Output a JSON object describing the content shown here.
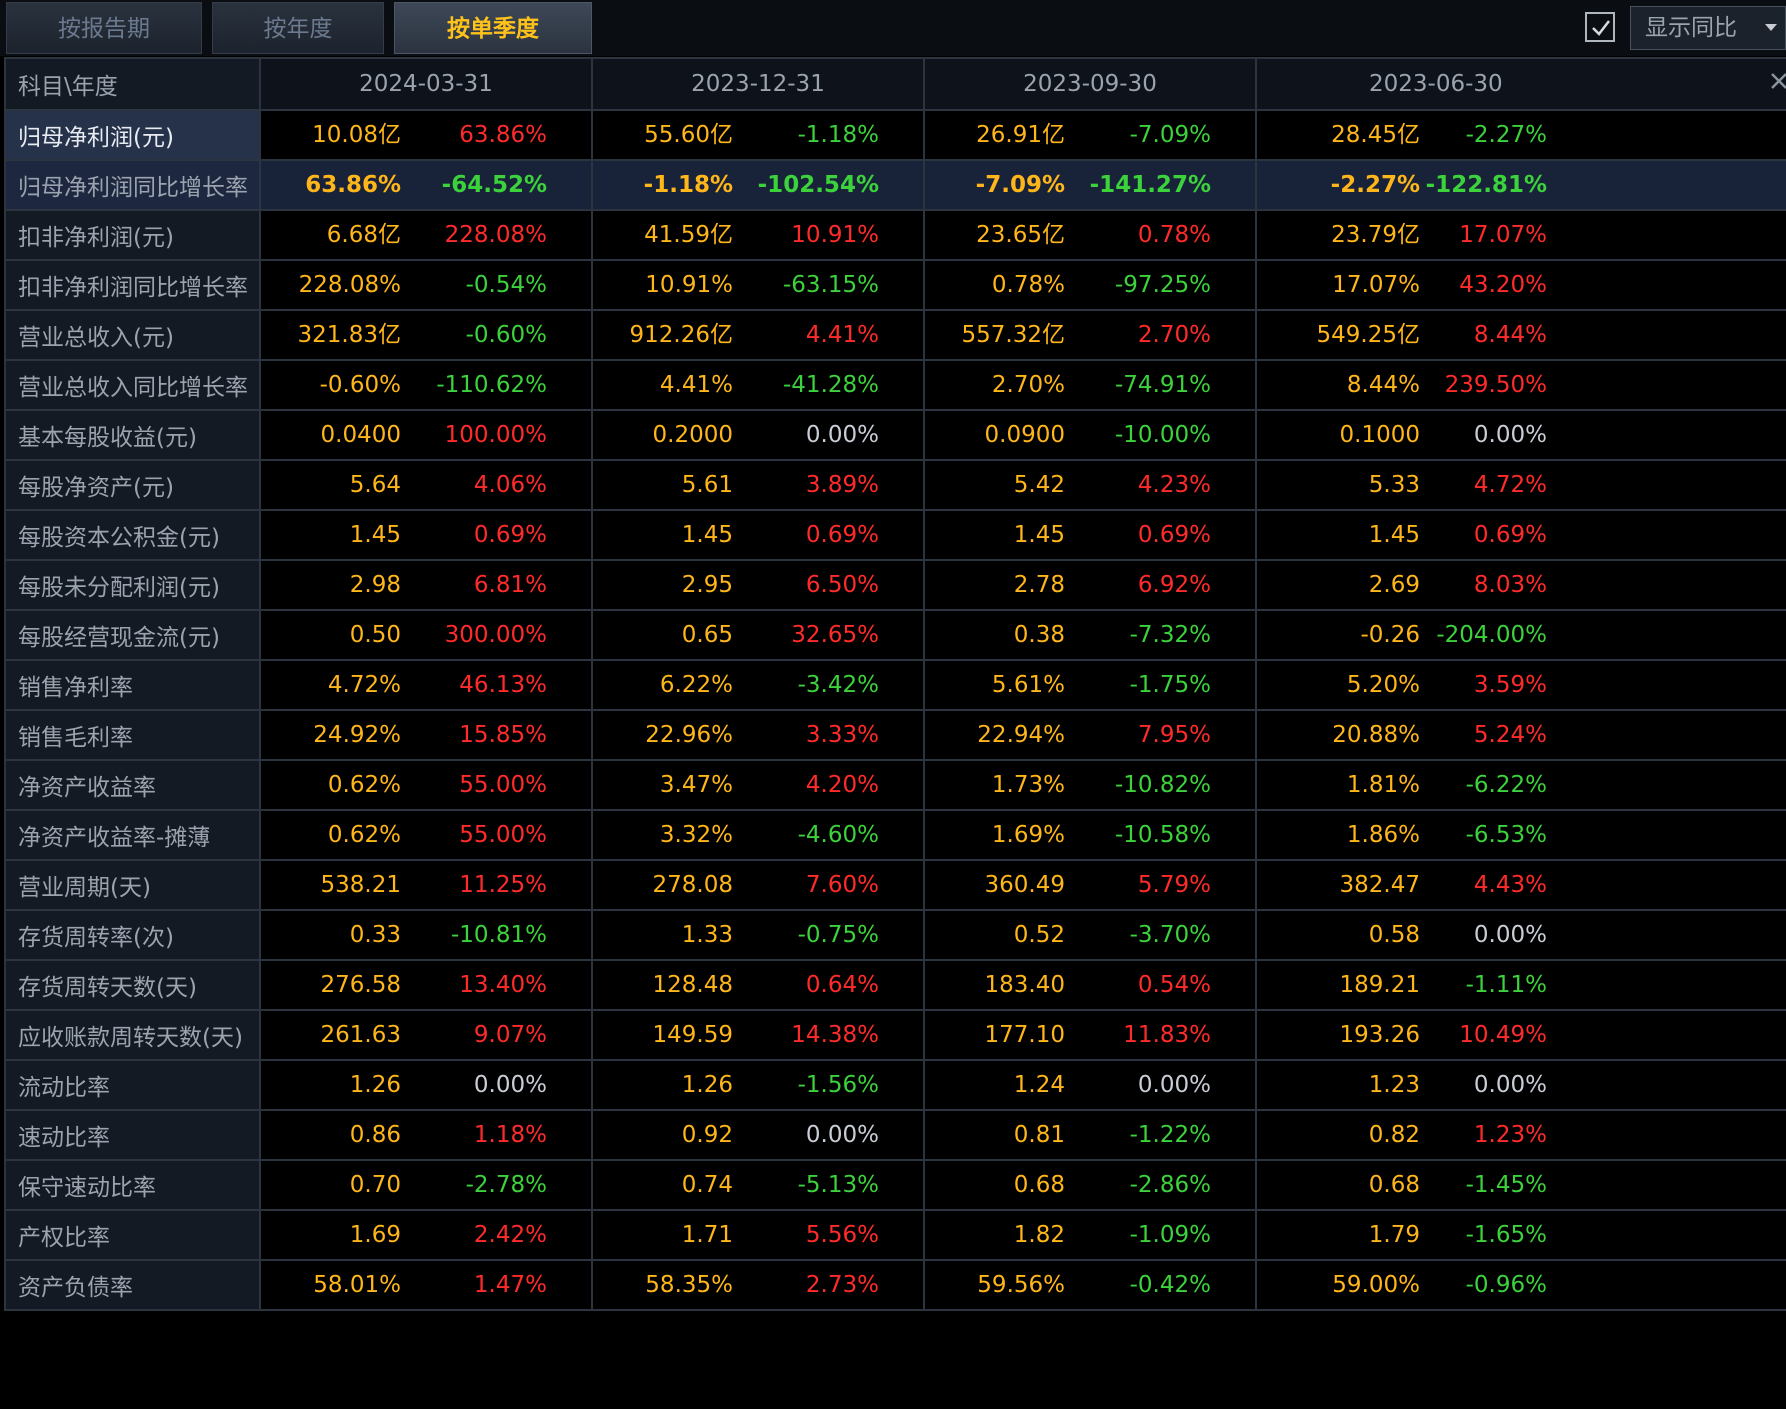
{
  "tabs": [
    {
      "label": "按报告期",
      "active": false
    },
    {
      "label": "按年度",
      "active": false
    },
    {
      "label": "按单季度",
      "active": true
    }
  ],
  "controls": {
    "checkbox_checked": true,
    "dropdown_label": "显示同比"
  },
  "table": {
    "header_label": "科目\\年度",
    "columns": [
      "2024-03-31",
      "2023-12-31",
      "2023-09-30",
      "2023-06-30"
    ],
    "rows": [
      {
        "label": "归母净利润(元)",
        "selected": true,
        "highlight": false,
        "cells": [
          {
            "value": "10.08亿",
            "change": "63.86%",
            "color": "red"
          },
          {
            "value": "55.60亿",
            "change": "-1.18%",
            "color": "green"
          },
          {
            "value": "26.91亿",
            "change": "-7.09%",
            "color": "green"
          },
          {
            "value": "28.45亿",
            "change": "-2.27%",
            "color": "green"
          }
        ]
      },
      {
        "label": "归母净利润同比增长率",
        "selected": false,
        "highlight": true,
        "cells": [
          {
            "value": "63.86%",
            "change": "-64.52%",
            "color": "green"
          },
          {
            "value": "-1.18%",
            "change": "-102.54%",
            "color": "green"
          },
          {
            "value": "-7.09%",
            "change": "-141.27%",
            "color": "green"
          },
          {
            "value": "-2.27%",
            "change": "-122.81%",
            "color": "green"
          }
        ]
      },
      {
        "label": "扣非净利润(元)",
        "selected": false,
        "highlight": false,
        "cells": [
          {
            "value": "6.68亿",
            "change": "228.08%",
            "color": "red"
          },
          {
            "value": "41.59亿",
            "change": "10.91%",
            "color": "red"
          },
          {
            "value": "23.65亿",
            "change": "0.78%",
            "color": "red"
          },
          {
            "value": "23.79亿",
            "change": "17.07%",
            "color": "red"
          }
        ]
      },
      {
        "label": "扣非净利润同比增长率",
        "selected": false,
        "highlight": false,
        "cells": [
          {
            "value": "228.08%",
            "change": "-0.54%",
            "color": "green"
          },
          {
            "value": "10.91%",
            "change": "-63.15%",
            "color": "green"
          },
          {
            "value": "0.78%",
            "change": "-97.25%",
            "color": "green"
          },
          {
            "value": "17.07%",
            "change": "43.20%",
            "color": "red"
          }
        ]
      },
      {
        "label": "营业总收入(元)",
        "selected": false,
        "highlight": false,
        "cells": [
          {
            "value": "321.83亿",
            "change": "-0.60%",
            "color": "green"
          },
          {
            "value": "912.26亿",
            "change": "4.41%",
            "color": "red"
          },
          {
            "value": "557.32亿",
            "change": "2.70%",
            "color": "red"
          },
          {
            "value": "549.25亿",
            "change": "8.44%",
            "color": "red"
          }
        ]
      },
      {
        "label": "营业总收入同比增长率",
        "selected": false,
        "highlight": false,
        "cells": [
          {
            "value": "-0.60%",
            "change": "-110.62%",
            "color": "green"
          },
          {
            "value": "4.41%",
            "change": "-41.28%",
            "color": "green"
          },
          {
            "value": "2.70%",
            "change": "-74.91%",
            "color": "green"
          },
          {
            "value": "8.44%",
            "change": "239.50%",
            "color": "red"
          }
        ]
      },
      {
        "label": "基本每股收益(元)",
        "selected": false,
        "highlight": false,
        "cells": [
          {
            "value": "0.0400",
            "change": "100.00%",
            "color": "red"
          },
          {
            "value": "0.2000",
            "change": "0.00%",
            "color": "white"
          },
          {
            "value": "0.0900",
            "change": "-10.00%",
            "color": "green"
          },
          {
            "value": "0.1000",
            "change": "0.00%",
            "color": "white"
          }
        ]
      },
      {
        "label": "每股净资产(元)",
        "selected": false,
        "highlight": false,
        "cells": [
          {
            "value": "5.64",
            "change": "4.06%",
            "color": "red"
          },
          {
            "value": "5.61",
            "change": "3.89%",
            "color": "red"
          },
          {
            "value": "5.42",
            "change": "4.23%",
            "color": "red"
          },
          {
            "value": "5.33",
            "change": "4.72%",
            "color": "red"
          }
        ]
      },
      {
        "label": "每股资本公积金(元)",
        "selected": false,
        "highlight": false,
        "cells": [
          {
            "value": "1.45",
            "change": "0.69%",
            "color": "red"
          },
          {
            "value": "1.45",
            "change": "0.69%",
            "color": "red"
          },
          {
            "value": "1.45",
            "change": "0.69%",
            "color": "red"
          },
          {
            "value": "1.45",
            "change": "0.69%",
            "color": "red"
          }
        ]
      },
      {
        "label": "每股未分配利润(元)",
        "selected": false,
        "highlight": false,
        "cells": [
          {
            "value": "2.98",
            "change": "6.81%",
            "color": "red"
          },
          {
            "value": "2.95",
            "change": "6.50%",
            "color": "red"
          },
          {
            "value": "2.78",
            "change": "6.92%",
            "color": "red"
          },
          {
            "value": "2.69",
            "change": "8.03%",
            "color": "red"
          }
        ]
      },
      {
        "label": "每股经营现金流(元)",
        "selected": false,
        "highlight": false,
        "cells": [
          {
            "value": "0.50",
            "change": "300.00%",
            "color": "red"
          },
          {
            "value": "0.65",
            "change": "32.65%",
            "color": "red"
          },
          {
            "value": "0.38",
            "change": "-7.32%",
            "color": "green"
          },
          {
            "value": "-0.26",
            "change": "-204.00%",
            "color": "green"
          }
        ]
      },
      {
        "label": "销售净利率",
        "selected": false,
        "highlight": false,
        "cells": [
          {
            "value": "4.72%",
            "change": "46.13%",
            "color": "red"
          },
          {
            "value": "6.22%",
            "change": "-3.42%",
            "color": "green"
          },
          {
            "value": "5.61%",
            "change": "-1.75%",
            "color": "green"
          },
          {
            "value": "5.20%",
            "change": "3.59%",
            "color": "red"
          }
        ]
      },
      {
        "label": "销售毛利率",
        "selected": false,
        "highlight": false,
        "cells": [
          {
            "value": "24.92%",
            "change": "15.85%",
            "color": "red"
          },
          {
            "value": "22.96%",
            "change": "3.33%",
            "color": "red"
          },
          {
            "value": "22.94%",
            "change": "7.95%",
            "color": "red"
          },
          {
            "value": "20.88%",
            "change": "5.24%",
            "color": "red"
          }
        ]
      },
      {
        "label": "净资产收益率",
        "selected": false,
        "highlight": false,
        "cells": [
          {
            "value": "0.62%",
            "change": "55.00%",
            "color": "red"
          },
          {
            "value": "3.47%",
            "change": "4.20%",
            "color": "red"
          },
          {
            "value": "1.73%",
            "change": "-10.82%",
            "color": "green"
          },
          {
            "value": "1.81%",
            "change": "-6.22%",
            "color": "green"
          }
        ]
      },
      {
        "label": "净资产收益率-摊薄",
        "selected": false,
        "highlight": false,
        "cells": [
          {
            "value": "0.62%",
            "change": "55.00%",
            "color": "red"
          },
          {
            "value": "3.32%",
            "change": "-4.60%",
            "color": "green"
          },
          {
            "value": "1.69%",
            "change": "-10.58%",
            "color": "green"
          },
          {
            "value": "1.86%",
            "change": "-6.53%",
            "color": "green"
          }
        ]
      },
      {
        "label": "营业周期(天)",
        "selected": false,
        "highlight": false,
        "cells": [
          {
            "value": "538.21",
            "change": "11.25%",
            "color": "red"
          },
          {
            "value": "278.08",
            "change": "7.60%",
            "color": "red"
          },
          {
            "value": "360.49",
            "change": "5.79%",
            "color": "red"
          },
          {
            "value": "382.47",
            "change": "4.43%",
            "color": "red"
          }
        ]
      },
      {
        "label": "存货周转率(次)",
        "selected": false,
        "highlight": false,
        "cells": [
          {
            "value": "0.33",
            "change": "-10.81%",
            "color": "green"
          },
          {
            "value": "1.33",
            "change": "-0.75%",
            "color": "green"
          },
          {
            "value": "0.52",
            "change": "-3.70%",
            "color": "green"
          },
          {
            "value": "0.58",
            "change": "0.00%",
            "color": "white"
          }
        ]
      },
      {
        "label": "存货周转天数(天)",
        "selected": false,
        "highlight": false,
        "cells": [
          {
            "value": "276.58",
            "change": "13.40%",
            "color": "red"
          },
          {
            "value": "128.48",
            "change": "0.64%",
            "color": "red"
          },
          {
            "value": "183.40",
            "change": "0.54%",
            "color": "red"
          },
          {
            "value": "189.21",
            "change": "-1.11%",
            "color": "green"
          }
        ]
      },
      {
        "label": "应收账款周转天数(天)",
        "selected": false,
        "highlight": false,
        "cells": [
          {
            "value": "261.63",
            "change": "9.07%",
            "color": "red"
          },
          {
            "value": "149.59",
            "change": "14.38%",
            "color": "red"
          },
          {
            "value": "177.10",
            "change": "11.83%",
            "color": "red"
          },
          {
            "value": "193.26",
            "change": "10.49%",
            "color": "red"
          }
        ]
      },
      {
        "label": "流动比率",
        "selected": false,
        "highlight": false,
        "cells": [
          {
            "value": "1.26",
            "change": "0.00%",
            "color": "white"
          },
          {
            "value": "1.26",
            "change": "-1.56%",
            "color": "green"
          },
          {
            "value": "1.24",
            "change": "0.00%",
            "color": "white"
          },
          {
            "value": "1.23",
            "change": "0.00%",
            "color": "white"
          }
        ]
      },
      {
        "label": "速动比率",
        "selected": false,
        "highlight": false,
        "cells": [
          {
            "value": "0.86",
            "change": "1.18%",
            "color": "red"
          },
          {
            "value": "0.92",
            "change": "0.00%",
            "color": "white"
          },
          {
            "value": "0.81",
            "change": "-1.22%",
            "color": "green"
          },
          {
            "value": "0.82",
            "change": "1.23%",
            "color": "red"
          }
        ]
      },
      {
        "label": "保守速动比率",
        "selected": false,
        "highlight": false,
        "cells": [
          {
            "value": "0.70",
            "change": "-2.78%",
            "color": "green"
          },
          {
            "value": "0.74",
            "change": "-5.13%",
            "color": "green"
          },
          {
            "value": "0.68",
            "change": "-2.86%",
            "color": "green"
          },
          {
            "value": "0.68",
            "change": "-1.45%",
            "color": "green"
          }
        ]
      },
      {
        "label": "产权比率",
        "selected": false,
        "highlight": false,
        "cells": [
          {
            "value": "1.69",
            "change": "2.42%",
            "color": "red"
          },
          {
            "value": "1.71",
            "change": "5.56%",
            "color": "red"
          },
          {
            "value": "1.82",
            "change": "-1.09%",
            "color": "green"
          },
          {
            "value": "1.79",
            "change": "-1.65%",
            "color": "green"
          }
        ]
      },
      {
        "label": "资产负债率",
        "selected": false,
        "highlight": false,
        "cells": [
          {
            "value": "58.01%",
            "change": "1.47%",
            "color": "red"
          },
          {
            "value": "58.35%",
            "change": "2.73%",
            "color": "red"
          },
          {
            "value": "59.56%",
            "change": "-0.42%",
            "color": "green"
          },
          {
            "value": "59.00%",
            "change": "-0.96%",
            "color": "green"
          }
        ]
      }
    ]
  },
  "colors": {
    "value": "#ffb61a",
    "up": "#ff2b2b",
    "down": "#3cd23c",
    "flat": "#c9ced6",
    "active_tab": "#ffc21a"
  },
  "icons": [
    "checkmark-icon",
    "chevron-down-icon",
    "close-icon"
  ]
}
